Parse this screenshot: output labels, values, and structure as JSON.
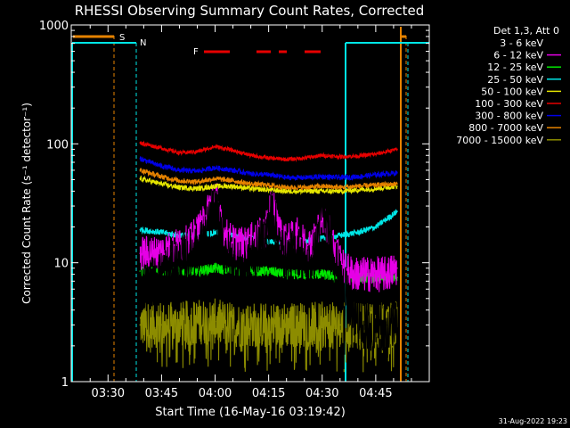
{
  "chart_data": {
    "type": "line",
    "title": "RHESSI Observing Summary Count Rates, Corrected",
    "xlabel": "Start Time (16-May-16 03:19:42)",
    "ylabel": "Corrected Count Rate (s⁻¹ detector⁻¹)",
    "x_ticks": [
      "03:30",
      "03:45",
      "04:00",
      "04:15",
      "04:30",
      "04:45"
    ],
    "x_tick_minutes": [
      30,
      45,
      60,
      75,
      90,
      105
    ],
    "x_range_minutes": [
      19.7,
      120
    ],
    "y_scale": "log",
    "ylim": [
      1,
      1000
    ],
    "y_ticks": [
      "1",
      "10",
      "100",
      "1000"
    ],
    "legend_title": "Det 1,3, Att 0",
    "legend_position": "right",
    "series": [
      {
        "name": "3 - 6 keV",
        "color": "#000000",
        "x": [
          39,
          43,
          47,
          50,
          53,
          57,
          60,
          62,
          65,
          68,
          71,
          74,
          76,
          78,
          80,
          83,
          86,
          88,
          90,
          93,
          96,
          99,
          102,
          105,
          108,
          111
        ],
        "values": [
          6,
          7,
          9,
          10,
          12,
          15,
          32,
          14,
          10,
          9,
          12,
          16,
          30,
          14,
          11,
          13,
          9,
          12,
          30,
          12,
          6,
          4,
          3,
          3,
          3,
          3
        ]
      },
      {
        "name": "6 - 12 keV",
        "color": "#e600e6",
        "x": [
          39,
          43,
          47,
          50,
          53,
          57,
          60,
          62,
          65,
          68,
          71,
          74,
          76,
          78,
          80,
          83,
          86,
          88,
          90,
          93,
          96,
          99,
          102,
          105,
          108,
          111
        ],
        "values": [
          12,
          12,
          13,
          14,
          15,
          22,
          42,
          18,
          15,
          14,
          16,
          18,
          35,
          18,
          15,
          17,
          14,
          16,
          26,
          15,
          9,
          8,
          8,
          8,
          8,
          9
        ]
      },
      {
        "name": "12 - 25 keV",
        "color": "#00e600",
        "x": [
          39,
          45,
          50,
          55,
          60,
          65,
          70,
          75,
          80,
          85,
          90,
          95,
          100,
          105,
          111
        ],
        "values": [
          8.5,
          8.5,
          8.5,
          8.5,
          9,
          8.5,
          8.5,
          8.5,
          8,
          8,
          8,
          7.5,
          7.5,
          7.5,
          7.5
        ]
      },
      {
        "name": "25 - 50 keV",
        "color": "#00e6e6",
        "x": [
          39,
          45,
          50,
          55,
          60,
          65,
          70,
          75,
          80,
          85,
          90,
          95,
          100,
          105,
          111
        ],
        "values": [
          19,
          18,
          17,
          17,
          18,
          17,
          16,
          15,
          15,
          15,
          16,
          17,
          18,
          20,
          27
        ]
      },
      {
        "name": "50 - 100 keV",
        "color": "#e6e600",
        "x": [
          39,
          45,
          50,
          55,
          60,
          65,
          70,
          75,
          80,
          85,
          90,
          95,
          100,
          105,
          111
        ],
        "values": [
          51,
          46,
          43,
          42,
          44,
          44,
          42,
          41,
          40,
          40,
          40,
          40,
          41,
          42,
          44
        ]
      },
      {
        "name": "100 - 300 keV",
        "color": "#e60000",
        "x": [
          39,
          45,
          50,
          55,
          60,
          65,
          70,
          75,
          80,
          85,
          90,
          95,
          100,
          105,
          111
        ],
        "values": [
          102,
          92,
          84,
          86,
          95,
          88,
          80,
          76,
          74,
          76,
          80,
          78,
          79,
          82,
          90
        ]
      },
      {
        "name": "300 - 800 keV",
        "color": "#0000e6",
        "x": [
          39,
          45,
          50,
          55,
          60,
          65,
          70,
          75,
          80,
          85,
          90,
          95,
          100,
          105,
          111
        ],
        "values": [
          75,
          65,
          60,
          59,
          63,
          60,
          56,
          55,
          52,
          52,
          53,
          52,
          53,
          55,
          57
        ]
      },
      {
        "name": "800 - 7000 keV",
        "color": "#e68200",
        "x": [
          39,
          45,
          50,
          55,
          60,
          65,
          70,
          75,
          80,
          85,
          90,
          95,
          100,
          105,
          111
        ],
        "values": [
          60,
          53,
          49,
          48,
          51,
          49,
          46,
          45,
          43,
          43,
          44,
          43,
          44,
          45,
          46
        ]
      },
      {
        "name": "7000 - 15000 keV",
        "color": "#8c8c00",
        "x": [
          39,
          45,
          50,
          55,
          60,
          65,
          70,
          75,
          80,
          85,
          90,
          95,
          100,
          105,
          111
        ],
        "values": [
          3,
          3,
          3,
          3.2,
          3.2,
          3,
          3,
          3,
          3,
          3,
          3,
          3,
          3,
          3,
          3
        ]
      }
    ],
    "flags": [
      {
        "label": "S",
        "color": "#e68200"
      },
      {
        "label": "N",
        "color": "#00e6e6"
      },
      {
        "label": "F",
        "color": "#e60000"
      }
    ]
  },
  "timestamp": "31-Aug-2022 19:23"
}
